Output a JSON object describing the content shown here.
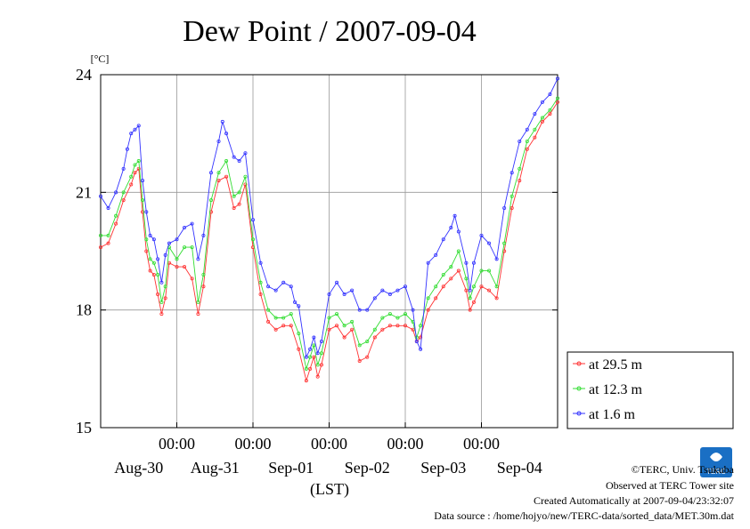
{
  "chart_data": {
    "type": "line",
    "title": "Dew Point / 2007-09-04",
    "yunit": "[°C]",
    "xlabel": "(LST)",
    "ylim": [
      15,
      24
    ],
    "yticks": [
      15,
      18,
      21,
      24
    ],
    "xlim": [
      0,
      6
    ],
    "grid": true,
    "legend_position": "bottom-right",
    "time_ticks": [
      {
        "x": 1,
        "label": "00:00"
      },
      {
        "x": 2,
        "label": "00:00"
      },
      {
        "x": 3,
        "label": "00:00"
      },
      {
        "x": 4,
        "label": "00:00"
      },
      {
        "x": 5,
        "label": "00:00"
      }
    ],
    "day_labels": [
      {
        "x": 0.5,
        "label": "Aug-30"
      },
      {
        "x": 1.5,
        "label": "Aug-31"
      },
      {
        "x": 2.5,
        "label": "Sep-01"
      },
      {
        "x": 3.5,
        "label": "Sep-02"
      },
      {
        "x": 4.5,
        "label": "Sep-03"
      },
      {
        "x": 5.5,
        "label": "Sep-04"
      }
    ],
    "series": [
      {
        "name": "at 29.5 m",
        "color": "#ff3333",
        "points": [
          [
            0.0,
            19.6
          ],
          [
            0.1,
            19.7
          ],
          [
            0.2,
            20.2
          ],
          [
            0.3,
            20.8
          ],
          [
            0.4,
            21.2
          ],
          [
            0.45,
            21.5
          ],
          [
            0.5,
            21.6
          ],
          [
            0.55,
            20.5
          ],
          [
            0.6,
            19.5
          ],
          [
            0.65,
            19.0
          ],
          [
            0.7,
            18.9
          ],
          [
            0.75,
            18.4
          ],
          [
            0.8,
            17.9
          ],
          [
            0.85,
            18.3
          ],
          [
            0.9,
            19.2
          ],
          [
            1.0,
            19.1
          ],
          [
            1.1,
            19.1
          ],
          [
            1.2,
            18.8
          ],
          [
            1.28,
            17.9
          ],
          [
            1.35,
            18.6
          ],
          [
            1.45,
            20.5
          ],
          [
            1.55,
            21.3
          ],
          [
            1.65,
            21.4
          ],
          [
            1.75,
            20.6
          ],
          [
            1.82,
            20.7
          ],
          [
            1.9,
            21.2
          ],
          [
            2.0,
            19.6
          ],
          [
            2.1,
            18.4
          ],
          [
            2.2,
            17.7
          ],
          [
            2.3,
            17.5
          ],
          [
            2.4,
            17.6
          ],
          [
            2.5,
            17.6
          ],
          [
            2.6,
            17.0
          ],
          [
            2.7,
            16.2
          ],
          [
            2.75,
            16.5
          ],
          [
            2.8,
            16.8
          ],
          [
            2.85,
            16.3
          ],
          [
            2.9,
            16.6
          ],
          [
            3.0,
            17.5
          ],
          [
            3.1,
            17.6
          ],
          [
            3.2,
            17.3
          ],
          [
            3.3,
            17.5
          ],
          [
            3.4,
            16.7
          ],
          [
            3.5,
            16.8
          ],
          [
            3.6,
            17.3
          ],
          [
            3.7,
            17.5
          ],
          [
            3.8,
            17.6
          ],
          [
            3.9,
            17.6
          ],
          [
            4.0,
            17.6
          ],
          [
            4.1,
            17.5
          ],
          [
            4.15,
            17.2
          ],
          [
            4.2,
            17.3
          ],
          [
            4.3,
            18.0
          ],
          [
            4.4,
            18.3
          ],
          [
            4.5,
            18.6
          ],
          [
            4.6,
            18.8
          ],
          [
            4.7,
            19.0
          ],
          [
            4.8,
            18.5
          ],
          [
            4.85,
            18.0
          ],
          [
            4.9,
            18.2
          ],
          [
            5.0,
            18.6
          ],
          [
            5.1,
            18.5
          ],
          [
            5.2,
            18.3
          ],
          [
            5.3,
            19.5
          ],
          [
            5.4,
            20.6
          ],
          [
            5.5,
            21.3
          ],
          [
            5.6,
            22.1
          ],
          [
            5.7,
            22.4
          ],
          [
            5.8,
            22.8
          ],
          [
            5.9,
            23.0
          ],
          [
            6.0,
            23.3
          ]
        ]
      },
      {
        "name": "at 12.3 m",
        "color": "#33dd33",
        "points": [
          [
            0.0,
            19.9
          ],
          [
            0.1,
            19.9
          ],
          [
            0.2,
            20.4
          ],
          [
            0.3,
            21.0
          ],
          [
            0.4,
            21.4
          ],
          [
            0.45,
            21.7
          ],
          [
            0.5,
            21.8
          ],
          [
            0.55,
            20.8
          ],
          [
            0.6,
            19.8
          ],
          [
            0.65,
            19.3
          ],
          [
            0.7,
            19.2
          ],
          [
            0.75,
            18.9
          ],
          [
            0.8,
            18.2
          ],
          [
            0.85,
            18.6
          ],
          [
            0.9,
            19.6
          ],
          [
            1.0,
            19.3
          ],
          [
            1.1,
            19.6
          ],
          [
            1.2,
            19.6
          ],
          [
            1.28,
            18.2
          ],
          [
            1.35,
            18.9
          ],
          [
            1.45,
            20.8
          ],
          [
            1.55,
            21.5
          ],
          [
            1.65,
            21.8
          ],
          [
            1.75,
            20.9
          ],
          [
            1.82,
            21.0
          ],
          [
            1.9,
            21.4
          ],
          [
            2.0,
            19.8
          ],
          [
            2.1,
            18.7
          ],
          [
            2.2,
            18.0
          ],
          [
            2.3,
            17.8
          ],
          [
            2.4,
            17.8
          ],
          [
            2.5,
            17.9
          ],
          [
            2.6,
            17.4
          ],
          [
            2.7,
            16.5
          ],
          [
            2.75,
            16.8
          ],
          [
            2.8,
            17.1
          ],
          [
            2.85,
            16.6
          ],
          [
            2.9,
            16.9
          ],
          [
            3.0,
            17.8
          ],
          [
            3.1,
            17.9
          ],
          [
            3.2,
            17.6
          ],
          [
            3.3,
            17.7
          ],
          [
            3.4,
            17.1
          ],
          [
            3.5,
            17.2
          ],
          [
            3.6,
            17.5
          ],
          [
            3.7,
            17.8
          ],
          [
            3.8,
            17.9
          ],
          [
            3.9,
            17.8
          ],
          [
            4.0,
            17.9
          ],
          [
            4.1,
            17.7
          ],
          [
            4.15,
            17.3
          ],
          [
            4.2,
            17.6
          ],
          [
            4.3,
            18.3
          ],
          [
            4.4,
            18.6
          ],
          [
            4.5,
            18.9
          ],
          [
            4.6,
            19.1
          ],
          [
            4.7,
            19.5
          ],
          [
            4.8,
            18.8
          ],
          [
            4.85,
            18.3
          ],
          [
            4.9,
            18.6
          ],
          [
            5.0,
            19.0
          ],
          [
            5.1,
            19.0
          ],
          [
            5.2,
            18.6
          ],
          [
            5.3,
            19.7
          ],
          [
            5.4,
            20.9
          ],
          [
            5.5,
            21.6
          ],
          [
            5.6,
            22.3
          ],
          [
            5.7,
            22.6
          ],
          [
            5.8,
            22.9
          ],
          [
            5.9,
            23.1
          ],
          [
            6.0,
            23.4
          ]
        ]
      },
      {
        "name": "at 1.6 m",
        "color": "#3333ff",
        "points": [
          [
            0.0,
            20.9
          ],
          [
            0.1,
            20.6
          ],
          [
            0.2,
            21.0
          ],
          [
            0.3,
            21.6
          ],
          [
            0.35,
            22.1
          ],
          [
            0.4,
            22.5
          ],
          [
            0.45,
            22.6
          ],
          [
            0.5,
            22.7
          ],
          [
            0.55,
            21.3
          ],
          [
            0.6,
            20.5
          ],
          [
            0.65,
            19.9
          ],
          [
            0.7,
            19.8
          ],
          [
            0.75,
            19.3
          ],
          [
            0.8,
            18.7
          ],
          [
            0.85,
            19.4
          ],
          [
            0.9,
            19.7
          ],
          [
            1.0,
            19.8
          ],
          [
            1.1,
            20.1
          ],
          [
            1.2,
            20.2
          ],
          [
            1.28,
            19.3
          ],
          [
            1.35,
            19.9
          ],
          [
            1.45,
            21.5
          ],
          [
            1.55,
            22.3
          ],
          [
            1.6,
            22.8
          ],
          [
            1.65,
            22.5
          ],
          [
            1.75,
            21.9
          ],
          [
            1.82,
            21.8
          ],
          [
            1.9,
            22.0
          ],
          [
            2.0,
            20.3
          ],
          [
            2.1,
            19.2
          ],
          [
            2.2,
            18.6
          ],
          [
            2.3,
            18.5
          ],
          [
            2.4,
            18.7
          ],
          [
            2.5,
            18.6
          ],
          [
            2.55,
            18.2
          ],
          [
            2.6,
            18.1
          ],
          [
            2.7,
            16.8
          ],
          [
            2.75,
            17.0
          ],
          [
            2.8,
            17.3
          ],
          [
            2.85,
            16.9
          ],
          [
            2.9,
            17.2
          ],
          [
            3.0,
            18.4
          ],
          [
            3.1,
            18.7
          ],
          [
            3.2,
            18.4
          ],
          [
            3.3,
            18.5
          ],
          [
            3.4,
            18.0
          ],
          [
            3.5,
            18.0
          ],
          [
            3.6,
            18.3
          ],
          [
            3.7,
            18.5
          ],
          [
            3.8,
            18.4
          ],
          [
            3.9,
            18.5
          ],
          [
            4.0,
            18.6
          ],
          [
            4.1,
            18.0
          ],
          [
            4.15,
            17.2
          ],
          [
            4.2,
            17.0
          ],
          [
            4.3,
            19.2
          ],
          [
            4.4,
            19.4
          ],
          [
            4.5,
            19.8
          ],
          [
            4.6,
            20.1
          ],
          [
            4.65,
            20.4
          ],
          [
            4.7,
            20.0
          ],
          [
            4.8,
            19.2
          ],
          [
            4.85,
            18.5
          ],
          [
            4.9,
            19.2
          ],
          [
            5.0,
            19.9
          ],
          [
            5.1,
            19.7
          ],
          [
            5.2,
            19.3
          ],
          [
            5.3,
            20.6
          ],
          [
            5.4,
            21.5
          ],
          [
            5.5,
            22.3
          ],
          [
            5.6,
            22.6
          ],
          [
            5.7,
            23.0
          ],
          [
            5.8,
            23.3
          ],
          [
            5.9,
            23.5
          ],
          [
            6.0,
            23.9
          ]
        ]
      }
    ]
  },
  "credits": {
    "copyright": "©TERC, Univ. Tsukuba",
    "observed": "Observed at TERC Tower site",
    "created": "Created Automatically at 2007-09-04/23:32:07",
    "source": "Data source : /home/hojyo/new/TERC-data/sorted_data/MET.30m.dat"
  },
  "logo": {
    "text": "TERC",
    "color": "#1a6fc4"
  }
}
